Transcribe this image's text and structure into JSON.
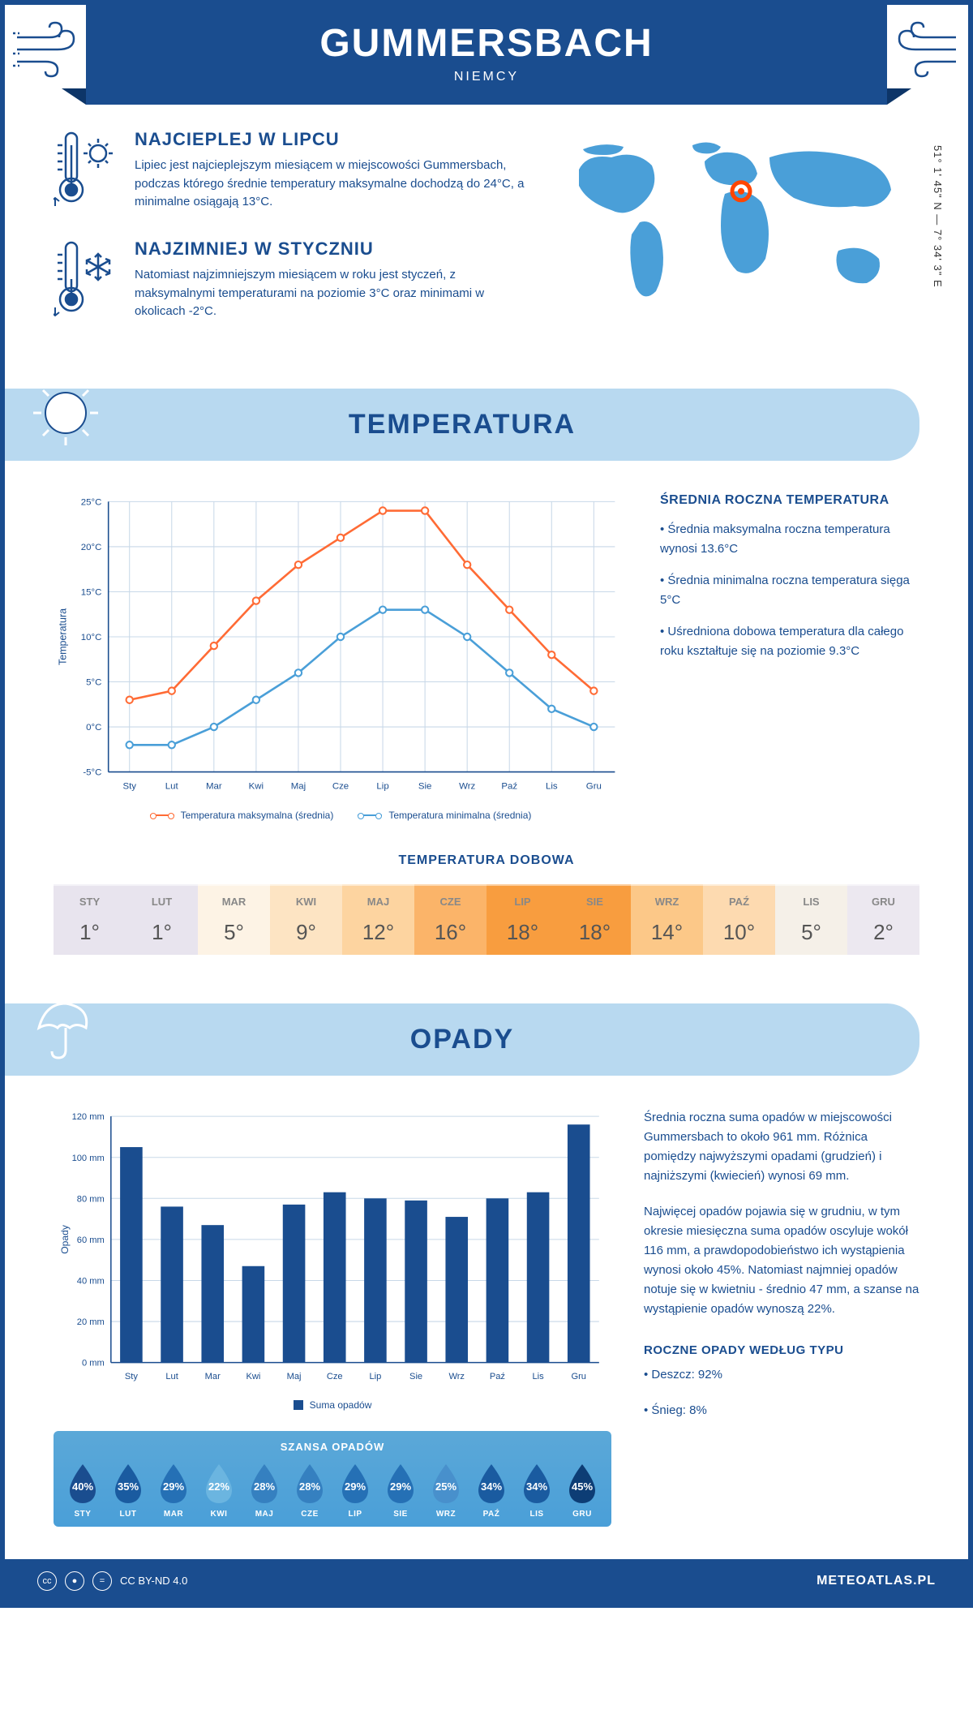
{
  "header": {
    "city": "GUMMERSBACH",
    "country": "NIEMCY",
    "coords": "51° 1' 45\" N — 7° 34' 3\" E"
  },
  "intro": {
    "hot": {
      "title": "NAJCIEPLEJ W LIPCU",
      "text": "Lipiec jest najcieplejszym miesiącem w miejscowości Gummersbach, podczas którego średnie temperatury maksymalne dochodzą do 24°C, a minimalne osiągają 13°C."
    },
    "cold": {
      "title": "NAJZIMNIEJ W STYCZNIU",
      "text": "Natomiast najzimniejszym miesiącem w roku jest styczeń, z maksymalnymi temperaturami na poziomie 3°C oraz minimami w okolicach -2°C."
    }
  },
  "map": {
    "marker_x": 0.5,
    "marker_y": 0.32,
    "marker_color": "#ff4500"
  },
  "temperature": {
    "section_title": "TEMPERATURA",
    "chart": {
      "type": "line",
      "months": [
        "Sty",
        "Lut",
        "Mar",
        "Kwi",
        "Maj",
        "Cze",
        "Lip",
        "Sie",
        "Wrz",
        "Paź",
        "Lis",
        "Gru"
      ],
      "max_series": [
        3,
        4,
        9,
        14,
        18,
        21,
        24,
        24,
        18,
        13,
        8,
        4
      ],
      "min_series": [
        -2,
        -2,
        0,
        3,
        6,
        10,
        13,
        13,
        10,
        6,
        2,
        0
      ],
      "max_color": "#ff6b35",
      "min_color": "#4a9fd8",
      "ylim": [
        -5,
        25
      ],
      "ytick_step": 5,
      "y_labels": [
        "-5°C",
        "0°C",
        "5°C",
        "10°C",
        "15°C",
        "20°C",
        "25°C"
      ],
      "y_title": "Temperatura",
      "legend_max": "Temperatura maksymalna (średnia)",
      "legend_min": "Temperatura minimalna (średnia)",
      "grid_color": "#c8d8e8"
    },
    "info": {
      "heading": "ŚREDNIA ROCZNA TEMPERATURA",
      "bullets": [
        "• Średnia maksymalna roczna temperatura wynosi 13.6°C",
        "• Średnia minimalna roczna temperatura sięga 5°C",
        "• Uśredniona dobowa temperatura dla całego roku kształtuje się na poziomie 9.3°C"
      ]
    },
    "daily": {
      "title": "TEMPERATURA DOBOWA",
      "months": [
        "STY",
        "LUT",
        "MAR",
        "KWI",
        "MAJ",
        "CZE",
        "LIP",
        "SIE",
        "WRZ",
        "PAŹ",
        "LIS",
        "GRU"
      ],
      "values": [
        "1°",
        "1°",
        "5°",
        "9°",
        "12°",
        "16°",
        "18°",
        "18°",
        "14°",
        "10°",
        "5°",
        "2°"
      ],
      "bg_colors": [
        "#e8e4ee",
        "#e8e4ee",
        "#fdf3e5",
        "#fde4c3",
        "#fdd4a0",
        "#fbb469",
        "#f89d3f",
        "#f89d3f",
        "#fcc888",
        "#fddab0",
        "#f5f0e8",
        "#ece8f0"
      ]
    }
  },
  "precipitation": {
    "section_title": "OPADY",
    "chart": {
      "type": "bar",
      "months": [
        "Sty",
        "Lut",
        "Mar",
        "Kwi",
        "Maj",
        "Cze",
        "Lip",
        "Sie",
        "Wrz",
        "Paź",
        "Lis",
        "Gru"
      ],
      "values": [
        105,
        76,
        67,
        47,
        77,
        83,
        80,
        79,
        71,
        80,
        83,
        116
      ],
      "bar_color": "#1a4d8f",
      "ylim": [
        0,
        120
      ],
      "ytick_step": 20,
      "y_labels": [
        "0 mm",
        "20 mm",
        "40 mm",
        "60 mm",
        "80 mm",
        "100 mm",
        "120 mm"
      ],
      "y_title": "Opady",
      "legend": "Suma opadów",
      "grid_color": "#c8d8e8",
      "bar_width": 0.55
    },
    "info": {
      "p1": "Średnia roczna suma opadów w miejscowości Gummersbach to około 961 mm. Różnica pomiędzy najwyższymi opadami (grudzień) i najniższymi (kwiecień) wynosi 69 mm.",
      "p2": "Najwięcej opadów pojawia się w grudniu, w tym okresie miesięczna suma opadów oscyluje wokół 116 mm, a prawdopodobieństwo ich wystąpienia wynosi około 45%. Natomiast najmniej opadów notuje się w kwietniu - średnio 47 mm, a szanse na wystąpienie opadów wynoszą 22%.",
      "type_heading": "ROCZNE OPADY WEDŁUG TYPU",
      "type_bullets": [
        "• Deszcz: 92%",
        "• Śnieg: 8%"
      ]
    },
    "chance": {
      "title": "SZANSA OPADÓW",
      "months": [
        "STY",
        "LUT",
        "MAR",
        "KWI",
        "MAJ",
        "CZE",
        "LIP",
        "SIE",
        "WRZ",
        "PAŹ",
        "LIS",
        "GRU"
      ],
      "values": [
        "40%",
        "35%",
        "29%",
        "22%",
        "28%",
        "28%",
        "29%",
        "29%",
        "25%",
        "34%",
        "34%",
        "45%"
      ],
      "drop_colors": [
        "#1a4d8f",
        "#1a5ba0",
        "#2570b5",
        "#6bb5e0",
        "#3580c0",
        "#3580c0",
        "#2570b5",
        "#2570b5",
        "#4890cc",
        "#1a5ba0",
        "#1a5ba0",
        "#0d3d75"
      ],
      "box_bg": "#5ba8d8"
    }
  },
  "footer": {
    "license": "CC BY-ND 4.0",
    "brand": "METEOATLAS.PL"
  }
}
